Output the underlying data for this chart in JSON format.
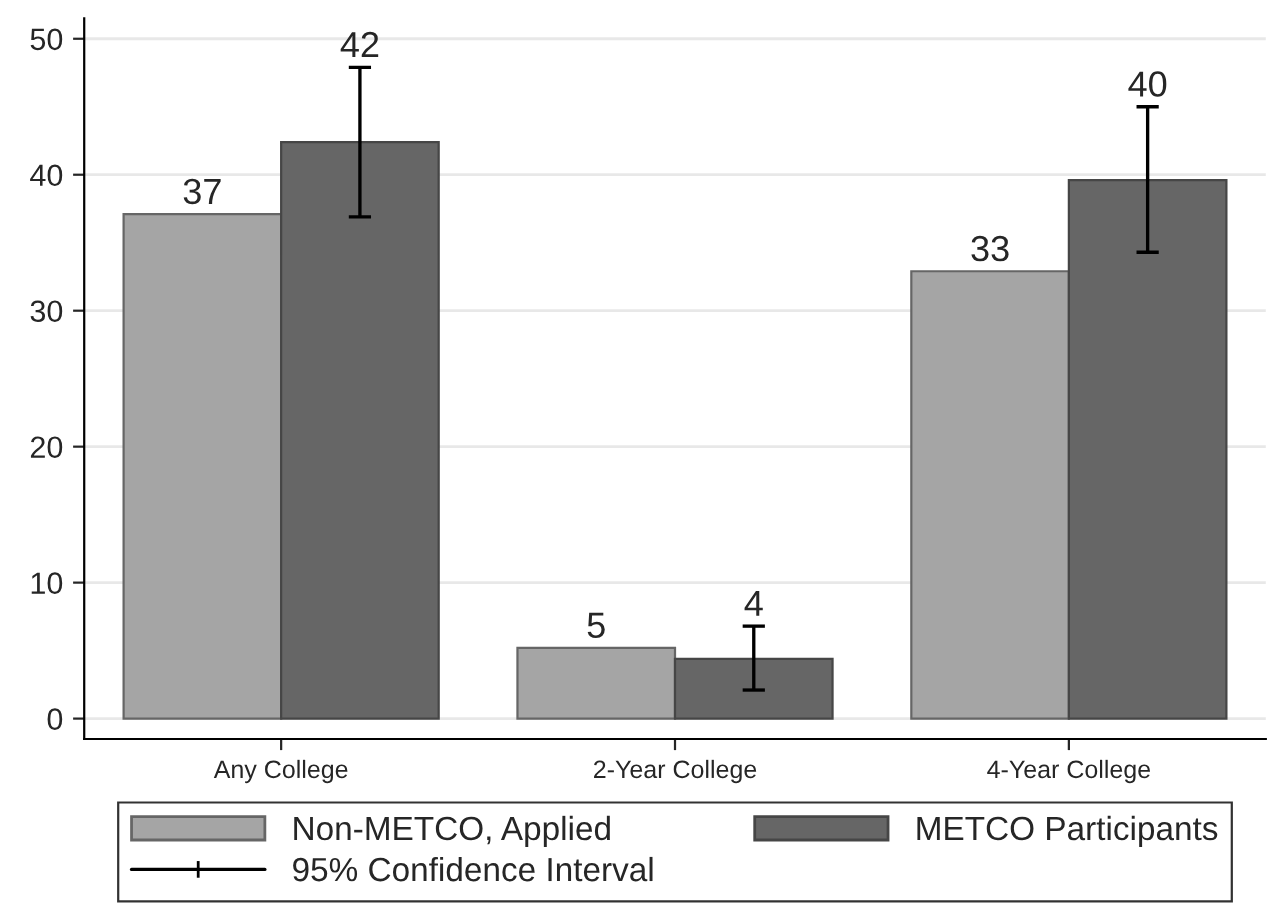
{
  "chart_data": {
    "type": "bar",
    "categories": [
      "Any College",
      "2-Year College",
      "4-Year College"
    ],
    "series": [
      {
        "name": "Non-METCO, Applied",
        "color": "#a5a5a5",
        "values": [
          37.1,
          5.2,
          32.9
        ],
        "value_labels": [
          "37",
          "5",
          "33"
        ]
      },
      {
        "name": "METCO Participants",
        "color": "#666666",
        "values": [
          42.4,
          4.4,
          39.6
        ],
        "value_labels": [
          "42",
          "4",
          "40"
        ],
        "errors": [
          [
            36.9,
            47.9
          ],
          [
            2.1,
            6.8
          ],
          [
            34.3,
            45.0
          ]
        ]
      }
    ],
    "ylim": [
      -1.5,
      51.5
    ],
    "yticks": [
      0,
      10,
      20,
      30,
      40,
      50
    ],
    "grid": "y",
    "legend": "bottom",
    "annotations": [
      "95% Confidence Interval"
    ]
  }
}
